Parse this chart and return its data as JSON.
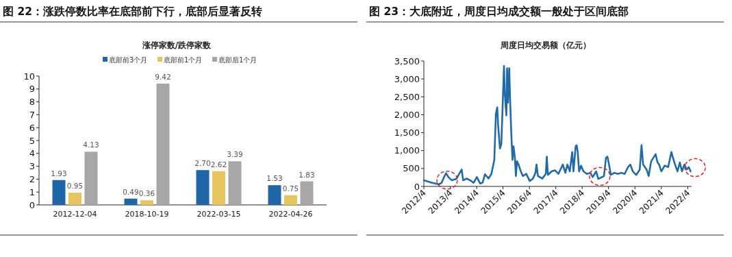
{
  "chart_data": [
    {
      "type": "bar",
      "title": "图 22：涨跌停数比率在底部前下行，底部后显著反转",
      "subtitle": "涨停家数/跌停家数",
      "categories": [
        "2012-12-04",
        "2018-10-19",
        "2022-03-15",
        "2022-04-26"
      ],
      "series": [
        {
          "name": "底部前3个月",
          "color": "#1f66a6",
          "values": [
            1.93,
            0.49,
            2.7,
            1.53
          ],
          "value_labels": [
            "1.93",
            "0.49",
            "2.70",
            "1.53"
          ]
        },
        {
          "name": "底部前1个月",
          "color": "#e6c65c",
          "values": [
            0.95,
            0.36,
            2.62,
            0.75
          ],
          "value_labels": [
            "0.95",
            "0.36",
            "2.62",
            "0.75"
          ]
        },
        {
          "name": "底部后1个月",
          "color": "#a8a6a6",
          "values": [
            4.13,
            9.42,
            3.39,
            1.83
          ],
          "value_labels": [
            "4.13",
            "9.42",
            "3.39",
            "1.83"
          ]
        }
      ],
      "ylim": [
        0,
        10
      ],
      "yticks": [
        0,
        1,
        2,
        3,
        4,
        5,
        6,
        7,
        8,
        9,
        10
      ],
      "legend": "top",
      "grid": false
    },
    {
      "type": "line",
      "title": "图 23：大底附近，周度日均成交额一般处于区间底部",
      "subtitle": "周度日均交易额（亿元）",
      "series": [
        {
          "color": "#1f6aa8",
          "x": [
            "2012-04-01",
            "2012-05-07",
            "2012-07-26",
            "2012-10-28",
            "2012-12-02",
            "2013-01-05",
            "2013-02-03",
            "2013-03-06",
            "2013-04-23",
            "2013-06-24",
            "2013-09-06",
            "2013-09-27",
            "2013-11-14",
            "2014-01-19",
            "2014-02-18",
            "2014-04-05",
            "2014-05-21",
            "2014-06-24",
            "2014-07-26",
            "2014-09-13",
            "2014-10-23",
            "2014-12-02",
            "2014-12-24",
            "2015-01-12",
            "2015-01-23",
            "2015-02-18",
            "2015-03-09",
            "2015-03-27",
            "2015-04-15",
            "2015-04-28",
            "2015-05-18",
            "2015-05-28",
            "2015-06-09",
            "2015-06-27",
            "2015-07-08",
            "2015-07-26",
            "2015-08-11",
            "2015-08-25",
            "2015-09-13",
            "2015-09-27",
            "2015-10-12",
            "2015-11-03",
            "2015-11-28",
            "2016-01-01",
            "2016-02-18",
            "2016-04-05",
            "2016-05-21",
            "2016-06-24",
            "2016-07-08",
            "2016-07-28",
            "2016-09-27",
            "2016-11-14",
            "2016-11-28",
            "2016-12-13",
            "2017-02-03",
            "2017-03-20",
            "2017-05-07",
            "2017-07-08",
            "2017-08-11",
            "2017-09-09",
            "2017-10-12",
            "2017-11-14",
            "2017-12-02",
            "2018-01-01",
            "2018-01-15",
            "2018-01-28",
            "2018-02-18",
            "2018-03-17",
            "2018-04-19",
            "2018-06-06",
            "2018-07-23",
            "2018-08-25",
            "2018-10-12",
            "2018-11-11",
            "2019-01-01",
            "2019-01-28",
            "2019-02-25",
            "2019-03-17",
            "2019-04-08",
            "2019-05-03",
            "2019-06-20",
            "2019-08-07",
            "2019-09-24",
            "2019-11-11",
            "2019-12-27",
            "2020-01-28",
            "2020-03-02",
            "2020-04-19",
            "2020-06-06",
            "2020-07-01",
            "2020-07-23",
            "2020-09-09",
            "2020-10-08",
            "2020-11-11",
            "2020-12-13",
            "2021-01-12",
            "2021-02-07",
            "2021-03-02",
            "2021-04-01",
            "2021-05-18",
            "2021-07-05",
            "2021-08-18",
            "2021-09-09",
            "2021-10-08",
            "2021-11-11",
            "2021-12-13",
            "2022-01-12",
            "2022-02-14",
            "2022-03-17",
            "2022-04-15",
            "2022-05-11"
          ],
          "values": [
            170,
            150,
            100,
            60,
            100,
            260,
            370,
            260,
            170,
            210,
            470,
            170,
            220,
            150,
            100,
            260,
            80,
            110,
            340,
            220,
            350,
            740,
            2020,
            2210,
            1730,
            1060,
            1180,
            2210,
            3360,
            2530,
            1980,
            3300,
            2340,
            3300,
            2460,
            1440,
            740,
            1120,
            800,
            290,
            700,
            610,
            450,
            290,
            350,
            150,
            220,
            380,
            610,
            290,
            220,
            350,
            830,
            320,
            420,
            450,
            350,
            610,
            380,
            610,
            420,
            960,
            420,
            1120,
            1150,
            990,
            420,
            580,
            420,
            350,
            380,
            260,
            420,
            210,
            260,
            290,
            800,
            830,
            610,
            320,
            380,
            350,
            380,
            350,
            540,
            610,
            420,
            320,
            470,
            1150,
            610,
            470,
            290,
            700,
            800,
            900,
            670,
            610,
            420,
            580,
            540,
            960,
            800,
            610,
            420,
            670,
            420,
            610,
            470,
            540,
            420
          ]
        }
      ],
      "xlim": [
        "2012-04-01",
        "2022-05-25"
      ],
      "xticks": [
        {
          "value": "2012-04-01",
          "label": "2012/4"
        },
        {
          "value": "2013-04-01",
          "label": "2013/4"
        },
        {
          "value": "2014-04-01",
          "label": "2014/4"
        },
        {
          "value": "2015-04-01",
          "label": "2015/4"
        },
        {
          "value": "2016-04-01",
          "label": "2016/4"
        },
        {
          "value": "2017-04-01",
          "label": "2017/4"
        },
        {
          "value": "2018-04-01",
          "label": "2018/4"
        },
        {
          "value": "2019-04-01",
          "label": "2019/4"
        },
        {
          "value": "2020-04-01",
          "label": "2020/4"
        },
        {
          "value": "2021-04-01",
          "label": "2021/4"
        },
        {
          "value": "2022-04-01",
          "label": "2022/4"
        }
      ],
      "ylim": [
        0,
        3500
      ],
      "yticks": [
        0,
        {
          "value": 500,
          "label": "500"
        },
        {
          "value": 1000,
          "label": "1,000"
        },
        {
          "value": 1500,
          "label": "1,500"
        },
        {
          "value": 2000,
          "label": "2,000"
        },
        {
          "value": 2500,
          "label": "2,500"
        },
        {
          "value": 3000,
          "label": "3,000"
        },
        {
          "value": 3500,
          "label": "3,500"
        }
      ],
      "grid": false
    }
  ]
}
